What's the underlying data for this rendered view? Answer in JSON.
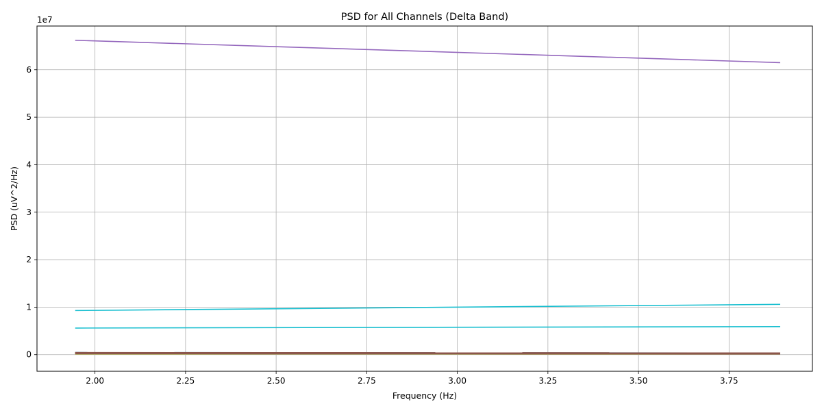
{
  "chart_data": {
    "type": "line",
    "title": "PSD for All Channels (Delta Band)",
    "xlabel": "Frequency (Hz)",
    "ylabel": "PSD (uV^2/Hz)",
    "y_offset_text": "1e7",
    "xlim": [
      1.84,
      3.98
    ],
    "ylim": [
      -3500000,
      69200000
    ],
    "x_ticks": [
      2.0,
      2.25,
      2.5,
      2.75,
      3.0,
      3.25,
      3.5,
      3.75
    ],
    "x_tick_labels": [
      "2.00",
      "2.25",
      "2.50",
      "2.75",
      "3.00",
      "3.25",
      "3.50",
      "3.75"
    ],
    "y_ticks": [
      0,
      10000000,
      20000000,
      30000000,
      40000000,
      50000000,
      60000000
    ],
    "y_tick_labels": [
      "0",
      "1",
      "2",
      "3",
      "4",
      "5",
      "6"
    ],
    "grid": true,
    "x": [
      1.9455,
      3.8911
    ],
    "series": [
      {
        "values": [
          66200000,
          61500000
        ],
        "color": "#9467bd",
        "width": 1.6
      },
      {
        "values": [
          9300000,
          10600000
        ],
        "color": "#17becf",
        "width": 1.6
      },
      {
        "values": [
          5600000,
          5900000
        ],
        "color": "#17becf",
        "width": 1.6
      },
      {
        "values": [
          450000,
          330000
        ],
        "color": "#1f77b4",
        "width": 1.6
      },
      {
        "values": [
          400000,
          300000
        ],
        "color": "#ff7f0e",
        "width": 1.6
      },
      {
        "values": [
          350000,
          270000
        ],
        "color": "#2ca02c",
        "width": 1.6
      },
      {
        "values": [
          300000,
          240000
        ],
        "color": "#d62728",
        "width": 1.6
      },
      {
        "values": [
          250000,
          210000
        ],
        "color": "#e377c2",
        "width": 1.6
      },
      {
        "values": [
          200000,
          170000
        ],
        "color": "#7f7f7f",
        "width": 1.6
      },
      {
        "values": [
          150000,
          130000
        ],
        "color": "#bcbd22",
        "width": 1.6
      },
      {
        "values": [
          320000,
          260000
        ],
        "color": "#8c564b",
        "width": 3.2
      }
    ]
  }
}
